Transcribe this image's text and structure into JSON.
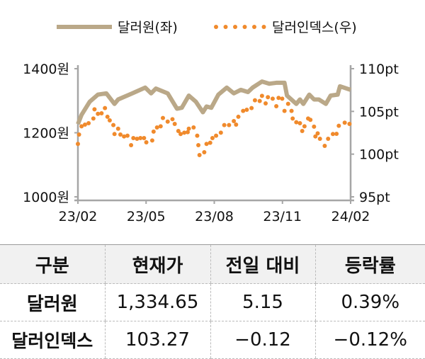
{
  "chart_data": {
    "type": "line",
    "legend": [
      "달러원(좌)",
      "달러인덱스(우)"
    ],
    "legend_position": "top",
    "colors": {
      "krw": "#baa888",
      "dxy": "#f08a2c",
      "axis": "#a6a6a6"
    },
    "x_ticks": [
      "23/02",
      "23/05",
      "23/08",
      "23/11",
      "24/02"
    ],
    "x_unit": "months since 23/02",
    "xlim": [
      0,
      12
    ],
    "y_left": {
      "ticks": [
        "1400원",
        "1200원",
        "1000원"
      ],
      "tick_values": [
        1400,
        1200,
        1000
      ],
      "ylim": [
        1000,
        1400
      ]
    },
    "y_right": {
      "ticks": [
        "110pt",
        "105pt",
        "100pt",
        "95pt"
      ],
      "tick_values": [
        110,
        105,
        100,
        95
      ],
      "ylim": [
        95,
        110
      ]
    },
    "series": [
      {
        "name": "달러원(좌)",
        "axis": "left",
        "style": "line",
        "x": [
          0,
          0.16,
          0.52,
          0.88,
          1.25,
          1.61,
          1.77,
          2.39,
          2.96,
          3.22,
          3.43,
          3.95,
          4.36,
          4.57,
          4.88,
          5.19,
          5.5,
          5.66,
          5.87,
          6.18,
          6.55,
          6.86,
          7.17,
          7.48,
          7.69,
          8.1,
          8.42,
          8.73,
          9.09,
          9.2,
          9.61,
          9.77,
          9.92,
          10.18,
          10.39,
          10.6,
          10.91,
          11.12,
          11.43,
          11.53,
          12
        ],
        "y": [
          1227,
          1256,
          1297,
          1319,
          1323,
          1290,
          1304,
          1323,
          1341,
          1323,
          1338,
          1323,
          1275,
          1278,
          1316,
          1297,
          1264,
          1282,
          1278,
          1319,
          1341,
          1323,
          1334,
          1327,
          1341,
          1360,
          1353,
          1356,
          1356,
          1316,
          1290,
          1304,
          1290,
          1319,
          1304,
          1304,
          1290,
          1316,
          1319,
          1345,
          1334
        ]
      },
      {
        "name": "달러인덱스(우)",
        "axis": "right",
        "style": "dots",
        "x": [
          0,
          0.05,
          0.16,
          0.31,
          0.47,
          0.68,
          0.73,
          0.88,
          1.04,
          1.19,
          1.3,
          1.4,
          1.56,
          1.61,
          1.77,
          1.87,
          2.03,
          2.18,
          2.34,
          2.44,
          2.6,
          2.75,
          2.91,
          3.01,
          3.27,
          3.33,
          3.48,
          3.64,
          3.74,
          3.95,
          4.16,
          4.26,
          4.42,
          4.52,
          4.68,
          4.83,
          4.88,
          5.09,
          5.25,
          5.3,
          5.35,
          5.56,
          5.66,
          5.82,
          5.92,
          6.08,
          6.29,
          6.44,
          6.65,
          6.86,
          6.96,
          7.06,
          7.27,
          7.43,
          7.64,
          7.79,
          8.0,
          8.1,
          8.26,
          8.36,
          8.57,
          8.73,
          8.83,
          8.99,
          9.09,
          9.25,
          9.4,
          9.45,
          9.61,
          9.77,
          9.87,
          9.97,
          10.13,
          10.23,
          10.39,
          10.45,
          10.55,
          10.65,
          10.86,
          11.01,
          11.22,
          11.38,
          11.48,
          11.74,
          11.95
        ],
        "y": [
          101.19,
          102.29,
          103.26,
          103.45,
          103.62,
          104.17,
          105.25,
          104.72,
          104.78,
          105.39,
          104.37,
          103.95,
          103.4,
          102.35,
          102.98,
          102.29,
          102.07,
          102.16,
          101.05,
          101.88,
          101.8,
          101.88,
          101.88,
          101.38,
          101.6,
          102.63,
          103.12,
          103.26,
          104.23,
          103.81,
          104.09,
          103.54,
          102.71,
          102.35,
          102.51,
          102.57,
          102.98,
          103.12,
          102.16,
          101.05,
          99.89,
          100.22,
          101.19,
          101.33,
          101.88,
          102.16,
          102.51,
          103.4,
          103.4,
          103.87,
          103.45,
          104.37,
          105.06,
          105.19,
          105.39,
          106.3,
          106.22,
          106.82,
          105.94,
          106.66,
          106.49,
          105.61,
          106.58,
          106.49,
          105.06,
          105.89,
          105.06,
          104.17,
          103.73,
          103.62,
          102.71,
          103.26,
          104.17,
          104.01,
          103.21,
          102.07,
          102.43,
          101.8,
          100.97,
          101.8,
          102.35,
          102.38,
          103.32,
          103.68,
          103.54
        ]
      }
    ]
  },
  "table": {
    "headers": [
      "구분",
      "현재가",
      "전일 대비",
      "등락률"
    ],
    "rows": [
      [
        "달러원",
        "1,334.65",
        "5.15",
        "0.39%"
      ],
      [
        "달러인덱스",
        "103.27",
        "−0.12",
        "−0.12%"
      ]
    ]
  }
}
